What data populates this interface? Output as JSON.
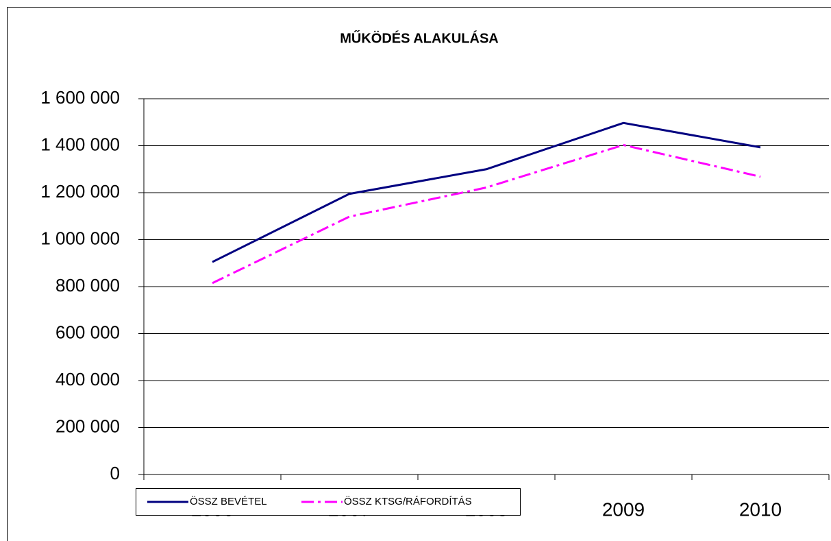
{
  "chart_data": {
    "type": "line",
    "title": "MŰKÖDÉS ALAKULÁSA",
    "categories": [
      "2006",
      "2007",
      "2008",
      "2009",
      "2010"
    ],
    "series": [
      {
        "name": "ÖSSZ BEVÉTEL",
        "color": "#000080",
        "values": [
          905000,
          1195000,
          1300000,
          1497000,
          1393000
        ]
      },
      {
        "name": "ÖSSZ KTSG/RÁFORDÍTÁS",
        "color": "#ff00ff",
        "values": [
          815000,
          1098000,
          1222000,
          1403000,
          1268000
        ]
      }
    ],
    "ylim": [
      0,
      1600000
    ],
    "yticks": [
      0,
      {
        "value": 200000,
        "label": "200 000"
      },
      {
        "value": 400000,
        "label": "400 000"
      },
      {
        "value": 600000,
        "label": "600 000"
      },
      {
        "value": 800000,
        "label": "800 000"
      },
      {
        "value": 1000000,
        "label": "1 000 000"
      },
      {
        "value": 1200000,
        "label": "1 200 000"
      },
      {
        "value": 1400000,
        "label": "1 400 000"
      },
      {
        "value": 1600000,
        "label": "1 600 000"
      }
    ],
    "grid": true,
    "legend": "bottom"
  }
}
